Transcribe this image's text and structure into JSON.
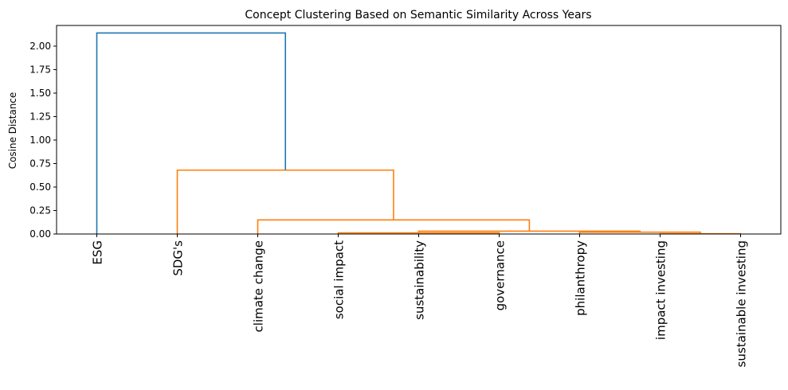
{
  "chart_data": {
    "type": "dendrogram",
    "title": "Concept Clustering Based on Semantic Similarity Across Years",
    "ylabel": "Cosine Distance",
    "xlabel": "",
    "ylim": [
      0,
      2.22
    ],
    "yticks": [
      "0.00",
      "0.25",
      "0.50",
      "0.75",
      "1.00",
      "1.25",
      "1.50",
      "1.75",
      "2.00"
    ],
    "leaves": [
      "ESG",
      "SDG's",
      "climate change",
      "social impact",
      "sustainability",
      "governance",
      "philanthropy",
      "impact investing",
      "sustainable investing"
    ],
    "colors": {
      "above_threshold": "#1f77b4",
      "cluster": "#ff7f0e"
    },
    "merges": [
      {
        "left": 7,
        "right": 8,
        "height": 0.003,
        "color": "cluster"
      },
      {
        "left": 3,
        "right": 5,
        "height": 0.012,
        "color": "cluster"
      },
      {
        "left": 6,
        "right": "n0",
        "height": 0.02,
        "color": "cluster"
      },
      {
        "left": 4,
        "right": "n1",
        "height": 0.027,
        "color": "cluster"
      },
      {
        "left": "n3",
        "right": "n2",
        "height": 0.03,
        "color": "cluster"
      },
      {
        "left": 2,
        "right": "n4",
        "height": 0.15,
        "color": "cluster"
      },
      {
        "left": 1,
        "right": "n5",
        "height": 0.68,
        "color": "cluster"
      },
      {
        "left": 0,
        "right": "n6",
        "height": 2.14,
        "color": "above_threshold"
      }
    ]
  }
}
